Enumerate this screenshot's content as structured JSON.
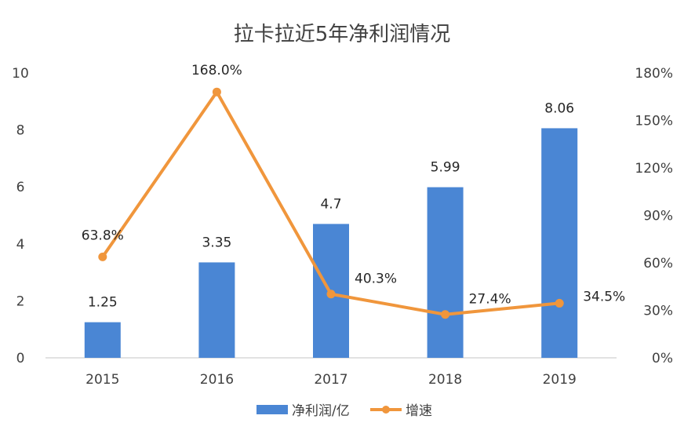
{
  "chart_data": {
    "type": "bar+line",
    "title": "拉卡拉近5年净利润情况",
    "categories": [
      "2015",
      "2016",
      "2017",
      "2018",
      "2019"
    ],
    "series": [
      {
        "name": "净利润/亿",
        "type": "bar",
        "axis": "left",
        "values": [
          1.25,
          3.35,
          4.7,
          5.99,
          8.06
        ],
        "labels": [
          "1.25",
          "3.35",
          "4.7",
          "5.99",
          "8.06"
        ],
        "color": "#4a86d4"
      },
      {
        "name": "增速",
        "type": "line",
        "axis": "right",
        "values": [
          63.8,
          168.0,
          40.3,
          27.4,
          34.5
        ],
        "labels": [
          "63.8%",
          "168.0%",
          "40.3%",
          "27.4%",
          "34.5%"
        ],
        "color": "#f0963c"
      }
    ],
    "y_left": {
      "ylim": [
        0,
        10
      ],
      "ticks": [
        "0",
        "2",
        "4",
        "6",
        "8",
        "10"
      ]
    },
    "y_right": {
      "ylim": [
        0,
        180
      ],
      "ticks": [
        "0%",
        "30%",
        "60%",
        "90%",
        "120%",
        "150%",
        "180%"
      ]
    },
    "legend_position": "bottom",
    "grid": false
  }
}
